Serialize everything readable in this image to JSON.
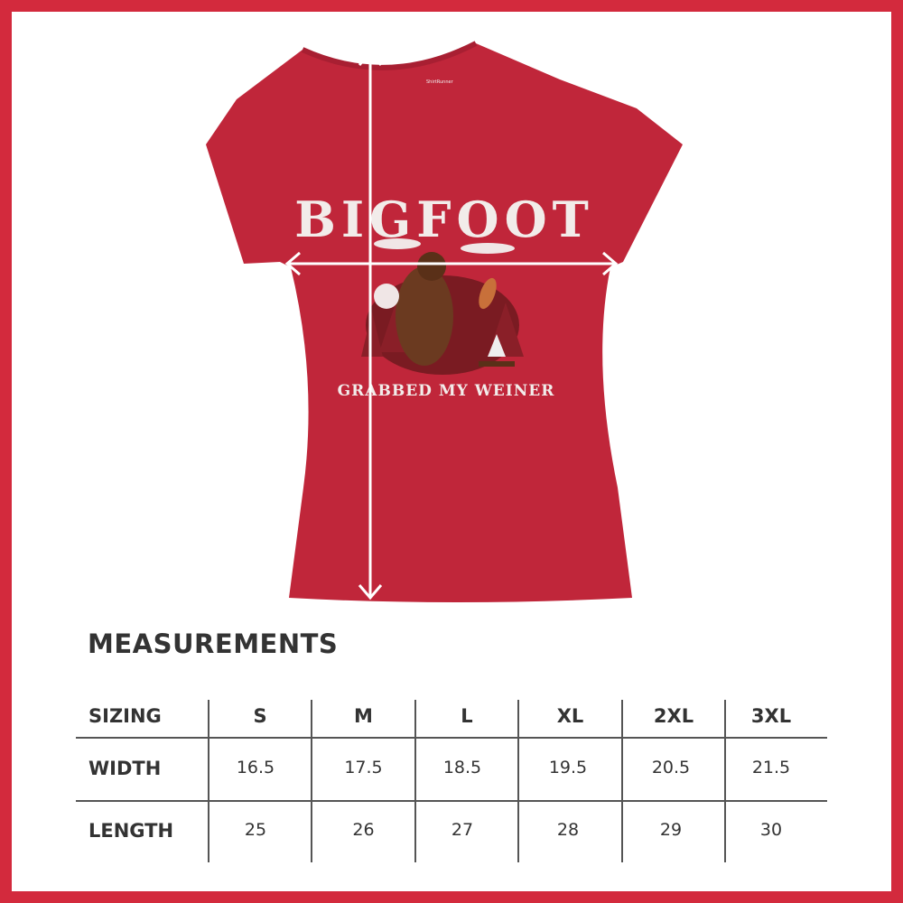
{
  "product": {
    "graphic_title": "BIGFOOT",
    "graphic_subtitle": "GRABBED MY WEINER",
    "shirt_color": "#c0263a",
    "border_color": "#d32a3d",
    "neck_label": "ShirtRunner"
  },
  "measurements": {
    "title": "MEASUREMENTS",
    "header_label": "SIZING",
    "sizes": [
      "S",
      "M",
      "L",
      "XL",
      "2XL",
      "3XL"
    ],
    "rows": [
      {
        "label": "WIDTH",
        "values": [
          "16.5",
          "17.5",
          "18.5",
          "19.5",
          "20.5",
          "21.5"
        ]
      },
      {
        "label": "LENGTH",
        "values": [
          "25",
          "26",
          "27",
          "28",
          "29",
          "30"
        ]
      }
    ]
  }
}
